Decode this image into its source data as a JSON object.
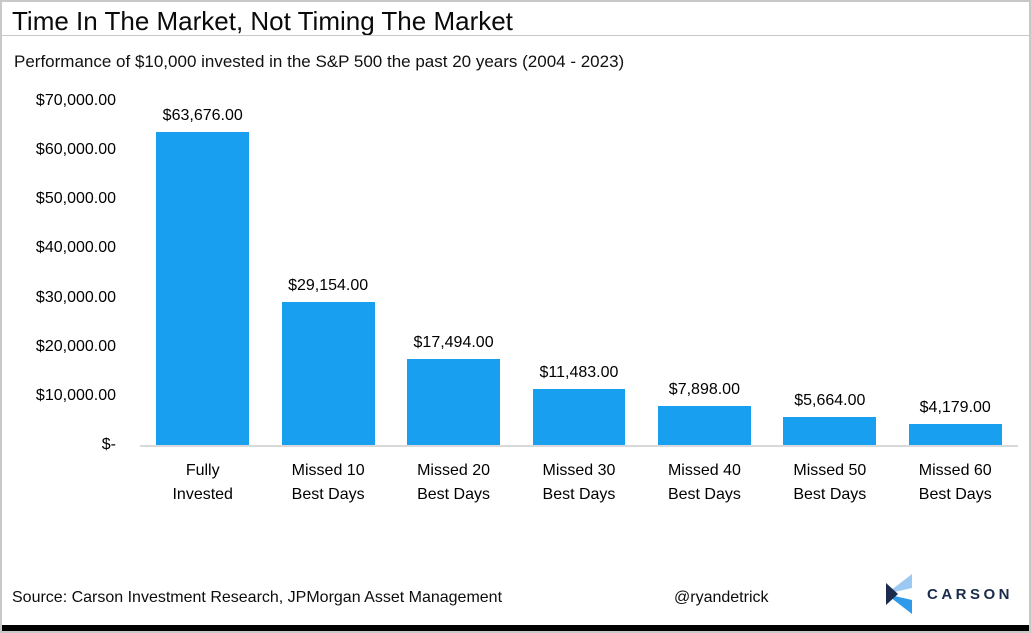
{
  "chart_data": {
    "type": "bar",
    "title": "Time In The Market, Not Timing The Market",
    "subtitle": "Performance of $10,000 invested in the S&P 500 the past 20 years (2004 - 2023)",
    "categories": [
      "Fully\nInvested",
      "Missed 10\nBest Days",
      "Missed 20\nBest Days",
      "Missed 30\nBest Days",
      "Missed 40\nBest Days",
      "Missed 50\nBest Days",
      "Missed 60\nBest Days"
    ],
    "values": [
      63676,
      29154,
      17494,
      11483,
      7898,
      5664,
      4179
    ],
    "value_labels": [
      "$63,676.00",
      "$29,154.00",
      "$17,494.00",
      "$11,483.00",
      "$7,898.00",
      "$5,664.00",
      "$4,179.00"
    ],
    "y_ticks": [
      "$70,000.00",
      "$60,000.00",
      "$50,000.00",
      "$40,000.00",
      "$30,000.00",
      "$20,000.00",
      "$10,000.00",
      "$-"
    ],
    "ylim": [
      0,
      70000
    ],
    "xlabel": "",
    "ylabel": "",
    "grid": false,
    "legend": "none",
    "bar_color": "#189FF0"
  },
  "footer": {
    "source": "Source: Carson Investment Research, JPMorgan Asset Management",
    "handle": "@ryandetrick",
    "brand": "CARSON"
  },
  "colors": {
    "bar": "#189FF0",
    "baseline": "#D9D9D9",
    "title_rule": "#C9C9C9",
    "page_border": "#C8C8C8",
    "bottom_bar": "#000000",
    "text": "#0D0D0D",
    "logo_navy": "#1B2B4D",
    "logo_light_blue": "#9CC9F1",
    "logo_blue": "#2F9AE9"
  }
}
